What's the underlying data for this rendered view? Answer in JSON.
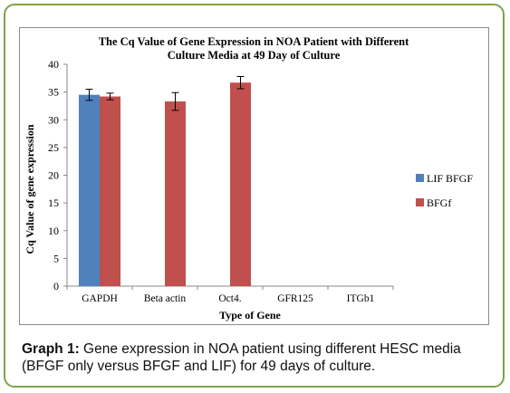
{
  "chart_data": {
    "type": "bar",
    "title_lines": [
      "The Cq Value of Gene Expression in NOA  Patient with Different",
      "Culture Media at 49 Day of Culture"
    ],
    "xlabel": "Type of Gene",
    "ylabel": "Cq Value of gene expression",
    "ylim": [
      0,
      40
    ],
    "yticks": [
      0,
      5,
      10,
      15,
      20,
      25,
      30,
      35,
      40
    ],
    "categories": [
      "GAPDH",
      "Beta actin",
      "Oct4.",
      "GFR125",
      "ITGb1"
    ],
    "series": [
      {
        "name": "LIF BFGF",
        "color": "#4f81bd",
        "values": [
          34.5,
          null,
          null,
          null,
          null
        ],
        "errors": [
          1.0,
          null,
          null,
          null,
          null
        ]
      },
      {
        "name": "BFGf",
        "color": "#c0504d",
        "values": [
          34.2,
          33.3,
          36.7,
          null,
          null
        ],
        "errors": [
          0.6,
          1.6,
          1.1,
          null,
          null
        ]
      }
    ],
    "grid": false,
    "legend": "right"
  },
  "caption": {
    "label": "Graph 1:",
    "text": " Gene expression in NOA patient using different HESC media (BFGF only versus BFGF and LIF) for 49 days of culture."
  }
}
